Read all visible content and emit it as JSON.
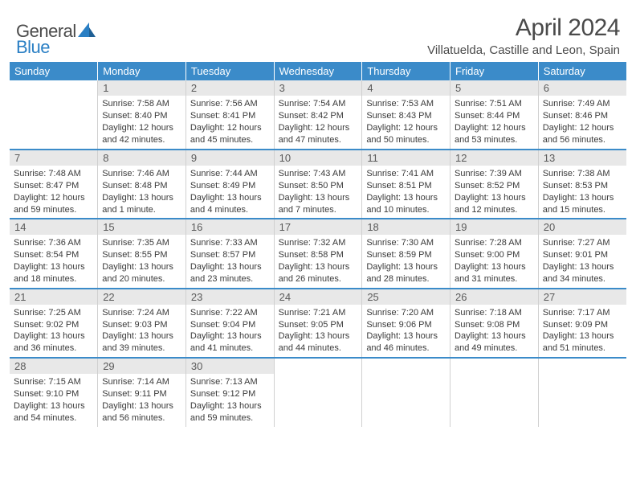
{
  "brand": {
    "word1": "General",
    "word2": "Blue"
  },
  "title": "April 2024",
  "location": "Villatuelda, Castille and Leon, Spain",
  "colors": {
    "header_bg": "#3b8bc9",
    "header_text": "#ffffff",
    "daynum_bg": "#e8e8e8",
    "border": "#d0d0d0",
    "row_border": "#3b8bc9",
    "brand_gray": "#4a4a4a",
    "brand_blue": "#2a7fc4"
  },
  "weekdays": [
    "Sunday",
    "Monday",
    "Tuesday",
    "Wednesday",
    "Thursday",
    "Friday",
    "Saturday"
  ],
  "start_offset": 1,
  "days": [
    {
      "n": 1,
      "sunrise": "7:58 AM",
      "sunset": "8:40 PM",
      "daylight": "12 hours and 42 minutes."
    },
    {
      "n": 2,
      "sunrise": "7:56 AM",
      "sunset": "8:41 PM",
      "daylight": "12 hours and 45 minutes."
    },
    {
      "n": 3,
      "sunrise": "7:54 AM",
      "sunset": "8:42 PM",
      "daylight": "12 hours and 47 minutes."
    },
    {
      "n": 4,
      "sunrise": "7:53 AM",
      "sunset": "8:43 PM",
      "daylight": "12 hours and 50 minutes."
    },
    {
      "n": 5,
      "sunrise": "7:51 AM",
      "sunset": "8:44 PM",
      "daylight": "12 hours and 53 minutes."
    },
    {
      "n": 6,
      "sunrise": "7:49 AM",
      "sunset": "8:46 PM",
      "daylight": "12 hours and 56 minutes."
    },
    {
      "n": 7,
      "sunrise": "7:48 AM",
      "sunset": "8:47 PM",
      "daylight": "12 hours and 59 minutes."
    },
    {
      "n": 8,
      "sunrise": "7:46 AM",
      "sunset": "8:48 PM",
      "daylight": "13 hours and 1 minute."
    },
    {
      "n": 9,
      "sunrise": "7:44 AM",
      "sunset": "8:49 PM",
      "daylight": "13 hours and 4 minutes."
    },
    {
      "n": 10,
      "sunrise": "7:43 AM",
      "sunset": "8:50 PM",
      "daylight": "13 hours and 7 minutes."
    },
    {
      "n": 11,
      "sunrise": "7:41 AM",
      "sunset": "8:51 PM",
      "daylight": "13 hours and 10 minutes."
    },
    {
      "n": 12,
      "sunrise": "7:39 AM",
      "sunset": "8:52 PM",
      "daylight": "13 hours and 12 minutes."
    },
    {
      "n": 13,
      "sunrise": "7:38 AM",
      "sunset": "8:53 PM",
      "daylight": "13 hours and 15 minutes."
    },
    {
      "n": 14,
      "sunrise": "7:36 AM",
      "sunset": "8:54 PM",
      "daylight": "13 hours and 18 minutes."
    },
    {
      "n": 15,
      "sunrise": "7:35 AM",
      "sunset": "8:55 PM",
      "daylight": "13 hours and 20 minutes."
    },
    {
      "n": 16,
      "sunrise": "7:33 AM",
      "sunset": "8:57 PM",
      "daylight": "13 hours and 23 minutes."
    },
    {
      "n": 17,
      "sunrise": "7:32 AM",
      "sunset": "8:58 PM",
      "daylight": "13 hours and 26 minutes."
    },
    {
      "n": 18,
      "sunrise": "7:30 AM",
      "sunset": "8:59 PM",
      "daylight": "13 hours and 28 minutes."
    },
    {
      "n": 19,
      "sunrise": "7:28 AM",
      "sunset": "9:00 PM",
      "daylight": "13 hours and 31 minutes."
    },
    {
      "n": 20,
      "sunrise": "7:27 AM",
      "sunset": "9:01 PM",
      "daylight": "13 hours and 34 minutes."
    },
    {
      "n": 21,
      "sunrise": "7:25 AM",
      "sunset": "9:02 PM",
      "daylight": "13 hours and 36 minutes."
    },
    {
      "n": 22,
      "sunrise": "7:24 AM",
      "sunset": "9:03 PM",
      "daylight": "13 hours and 39 minutes."
    },
    {
      "n": 23,
      "sunrise": "7:22 AM",
      "sunset": "9:04 PM",
      "daylight": "13 hours and 41 minutes."
    },
    {
      "n": 24,
      "sunrise": "7:21 AM",
      "sunset": "9:05 PM",
      "daylight": "13 hours and 44 minutes."
    },
    {
      "n": 25,
      "sunrise": "7:20 AM",
      "sunset": "9:06 PM",
      "daylight": "13 hours and 46 minutes."
    },
    {
      "n": 26,
      "sunrise": "7:18 AM",
      "sunset": "9:08 PM",
      "daylight": "13 hours and 49 minutes."
    },
    {
      "n": 27,
      "sunrise": "7:17 AM",
      "sunset": "9:09 PM",
      "daylight": "13 hours and 51 minutes."
    },
    {
      "n": 28,
      "sunrise": "7:15 AM",
      "sunset": "9:10 PM",
      "daylight": "13 hours and 54 minutes."
    },
    {
      "n": 29,
      "sunrise": "7:14 AM",
      "sunset": "9:11 PM",
      "daylight": "13 hours and 56 minutes."
    },
    {
      "n": 30,
      "sunrise": "7:13 AM",
      "sunset": "9:12 PM",
      "daylight": "13 hours and 59 minutes."
    }
  ],
  "labels": {
    "sunrise": "Sunrise: ",
    "sunset": "Sunset: ",
    "daylight": "Daylight: "
  }
}
